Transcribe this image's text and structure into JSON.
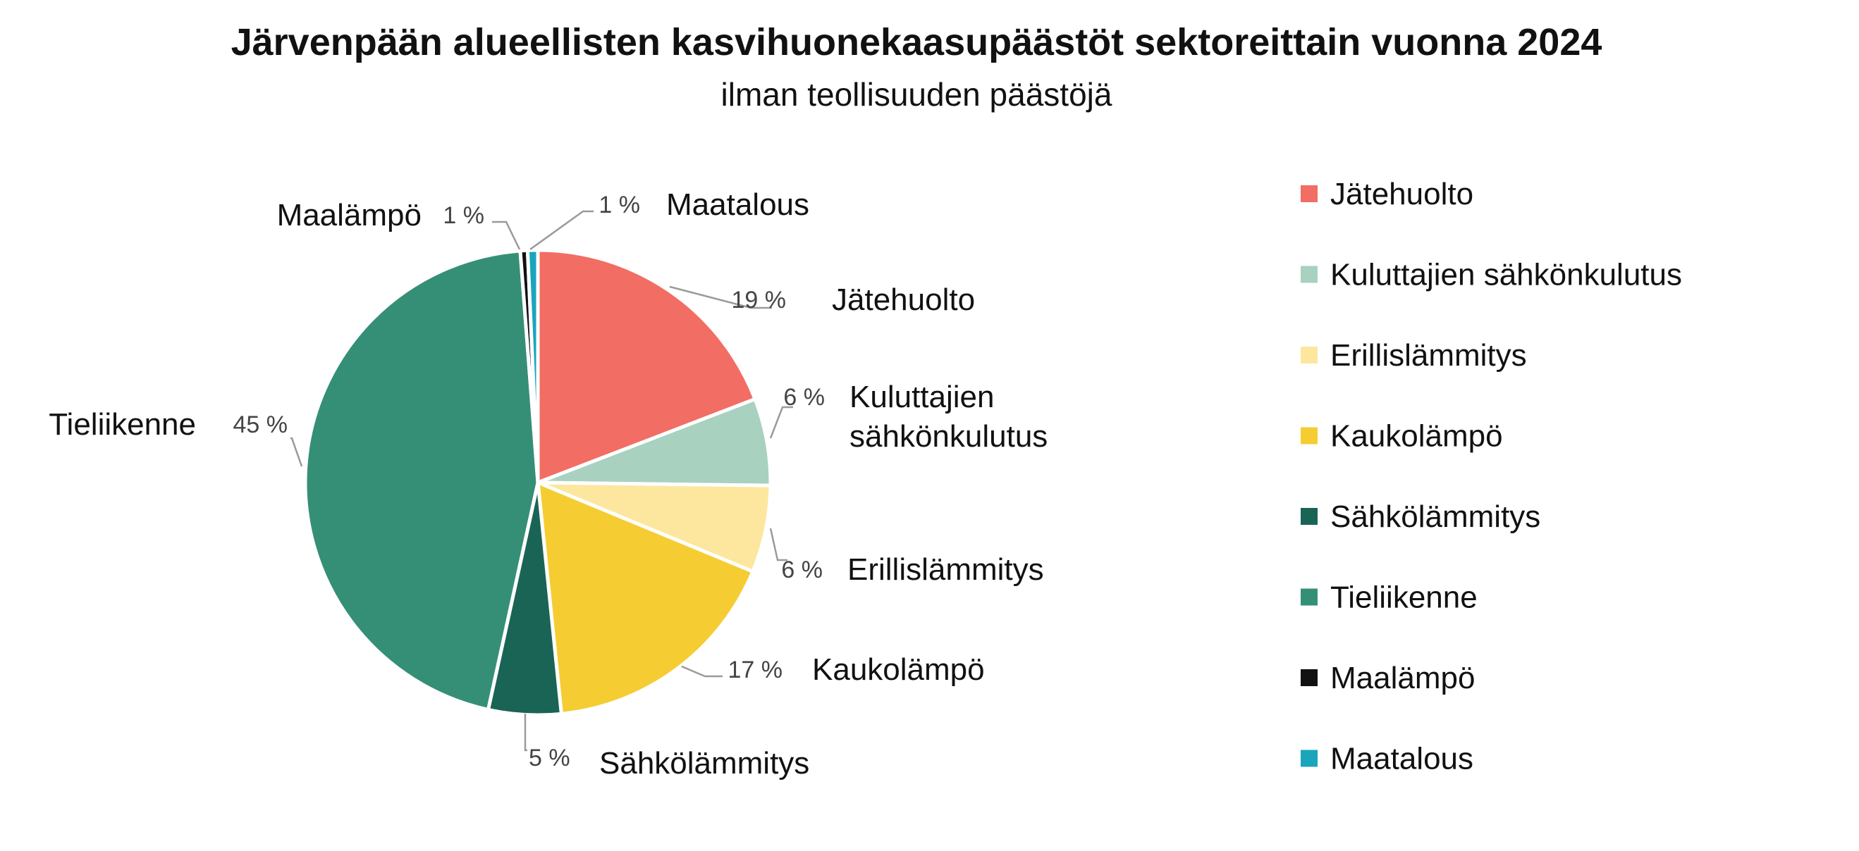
{
  "chart_data": {
    "type": "pie",
    "title": "Järvenpään alueellisten kasvihuonekaasupäästöt sektoreittain vuonna 2024",
    "subtitle": "ilman teollisuuden päästöjä",
    "legend_position": "right",
    "start_angle_deg": 0,
    "direction": "clockwise",
    "slices": [
      {
        "name": "Jätehuolto",
        "value": 19,
        "label": "19 %",
        "color": "#f26d63",
        "label_lines": [
          "Jätehuolto"
        ]
      },
      {
        "name": "Kuluttajien sähkönkulutus",
        "value": 6,
        "label": "6 %",
        "color": "#a8d1c0",
        "label_lines": [
          "Kuluttajien",
          "sähkönkulutus"
        ]
      },
      {
        "name": "Erillislämmitys",
        "value": 6,
        "label": "6 %",
        "color": "#fde79e",
        "label_lines": [
          "Erillislämmitys"
        ]
      },
      {
        "name": "Kaukolämpö",
        "value": 17,
        "label": "17 %",
        "color": "#f5cd33",
        "label_lines": [
          "Kaukolämpö"
        ]
      },
      {
        "name": "Sähkölämmitys",
        "value": 5,
        "label": "5 %",
        "color": "#1a6455",
        "label_lines": [
          "Sähkölämmitys"
        ]
      },
      {
        "name": "Tieliikenne",
        "value": 45,
        "label": "45 %",
        "color": "#358f77",
        "label_lines": [
          "Tieliikenne"
        ]
      },
      {
        "name": "Maalämpö",
        "value": 0.5,
        "label": "1 %",
        "color": "#111111",
        "label_lines": [
          "Maalämpö"
        ]
      },
      {
        "name": "Maatalous",
        "value": 0.7,
        "label": "1 %",
        "color": "#1aa5bd",
        "label_lines": [
          "Maatalous"
        ]
      }
    ],
    "legend": [
      "Jätehuolto",
      "Kuluttajien sähkönkulutus",
      "Erillislämmitys",
      "Kaukolämpö",
      "Sähkölämmitys",
      "Tieliikenne",
      "Maalämpö",
      "Maatalous"
    ]
  }
}
